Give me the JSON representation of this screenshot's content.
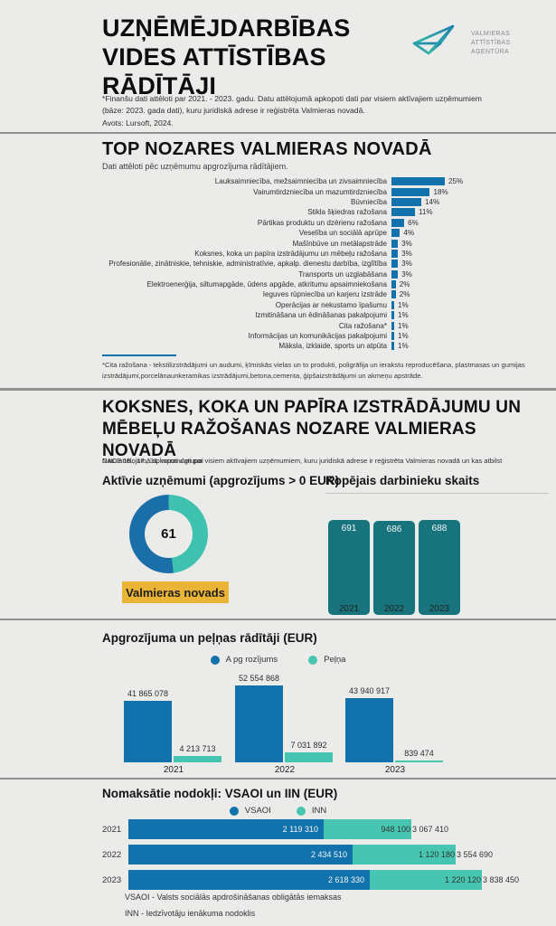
{
  "colors": {
    "blue": "#1272ab",
    "teal": "#46c5b1",
    "dark_teal": "#17747d",
    "donut_blue": "#1b6fa9",
    "donut_teal": "#3fc1b0",
    "yellow": "#eab436"
  },
  "header": {
    "title_lines": [
      "UZŅĒMĒJDARBĪBAS",
      "VIDES ATTĪSTĪBAS",
      "RĀDĪTĀJI"
    ],
    "note_lines": [
      "*Finanšu dati attēloti par 2021. - 2023. gadu. Datu attēlojumā apkopoti dati par visiem aktīvajiem uzņēmumiem",
      "(bāze: 2023. gada dati), kuru juridiskā adrese ir reģistrēta Valmieras novadā.",
      "Avots: Lursoft, 2024."
    ],
    "logo_lines": [
      "VALMIERAS",
      "ATTĪSTĪBAS",
      "AĢENTŪRA"
    ]
  },
  "top_sectors": {
    "title": "TOP NOZARES VALMIERAS NOVADĀ",
    "subtitle": "Dati attēloti pēc uzņēmumu apgrozījuma rādītājiem.",
    "footnote_lines": [
      "*Cita ražošana - tekstilizstrādājumi un audumi, ķīmiskās vielas un to produkti, poligrāfija un ierakstu reproducēšana, plastmasas un gumijas",
      "izstrādājumi,porcelānaunkeramikas izstrādājumi,betona,cementa, ģipšaizstrādājumi un akmeņu apstrāde."
    ]
  },
  "industry_section": {
    "title_lines": [
      "KOKSNES, KOKA UN PAPĪRA IZSTRĀDĀJUMU UN",
      "MĒBEĻU RAŽOŠANAS NOZARE VALMIERAS",
      "NOVADĀ"
    ],
    "subtitle_layer_back": "Datu attēlojumā apkopoti dati par visiem aktīvajiem uzņēmumiem, kuru juridiskā adrese ir reģistrēta Valmieras novadā un kas atbilst",
    "subtitle_layer_front": "NACE 16., 17., 31. nozaru grupai",
    "active_companies_heading": "Aktīvie uzņēmumi (apgrozījums > 0 EUR)",
    "badge": "Valmieras novads",
    "employees_heading": "Kopējais darbinieku skaits"
  },
  "turnover_section": {
    "title": "Apgrozījuma un peļņas rādītāji (EUR)",
    "legend": [
      "A pg rozījums",
      "Peļņa"
    ]
  },
  "tax_section": {
    "title": "Nomaksātie nodokļi: VSAOI un IIN (EUR)",
    "legend": [
      "VSAOI",
      "INN"
    ],
    "footnote_lines": [
      "VSAOI - Valsts sociālās apdrošināšanas obligātās iemaksas",
      "INN - Iedzīvotāju ienākuma nodoklis"
    ]
  },
  "chart_data": [
    {
      "id": "top_sectors",
      "type": "bar",
      "orientation": "horizontal",
      "title": "TOP NOZARES VALMIERAS NOVADĀ",
      "unit": "%",
      "color": "#1272ab",
      "categories": [
        "Lauksaimniecība, mežsaimniecība un zivsaimniecība",
        "Vairumtirdzniecība un mazumtirdzniecība",
        "Būvniecība",
        "Stikla šķiedras ražošana",
        "Pārtikas produktu un dzērienu ražošana",
        "Veselība un sociālā aprūpe",
        "Mašīnbūve un metālapstrāde",
        "Koksnes, koka un papīra izstrādājumu un mēbeļu ražošana",
        "Profesionālie, zinātniskie, tehniskie, administratīvie, apkalp. dienestu darbība, izglītība",
        "Transports un uzglabāšana",
        "Elektroenerģija, siltumapgāde, ūdens apgāde, atkritumu apsaimniekošana",
        "Ieguves rūpniecība un karjeru izstrāde",
        "Operācijas ar nekustamo īpašumu",
        "Izmitināšana un ēdināšanas pakalpojumi",
        "Cita ražošana*",
        "Informācijas un komunikācijas pakalpojumi",
        "Māksla, izklaide, sports un atpūta"
      ],
      "values": [
        25,
        18,
        14,
        11,
        6,
        4,
        3,
        3,
        3,
        3,
        2,
        2,
        1,
        1,
        1,
        1,
        1
      ],
      "value_labels": [
        "25%",
        "18%",
        "14%",
        "11%",
        "6%",
        "4%",
        "3%",
        "3%",
        "3%",
        "3%",
        "2%",
        "2%",
        "1%",
        "1%",
        "1%",
        "1%",
        "1%"
      ]
    },
    {
      "id": "active_companies",
      "type": "pie",
      "center_value": "61",
      "segments": [
        {
          "name": "teal-segment",
          "fraction": 0.48,
          "color": "#3fc1b0"
        },
        {
          "name": "blue-segment",
          "fraction": 0.52,
          "color": "#1b6fa9"
        }
      ]
    },
    {
      "id": "employees",
      "type": "bar",
      "title": "Kopējais darbinieku skaits",
      "categories": [
        "2021",
        "2022",
        "2023"
      ],
      "values": [
        691,
        686,
        688
      ],
      "value_labels": [
        "691",
        "686",
        "688"
      ],
      "color": "#17747d",
      "ylim": [
        0,
        691
      ]
    },
    {
      "id": "turnover_profit",
      "type": "bar",
      "title": "Apgrozījuma un peļņas rādītāji (EUR)",
      "categories": [
        "2021",
        "2022",
        "2023"
      ],
      "series": [
        {
          "name": "A pg rozījums",
          "color": "#1272ab",
          "values": [
            41865078,
            52554868,
            43940917
          ],
          "labels": [
            "41 865 078",
            "52 554 868",
            "43 940 917"
          ]
        },
        {
          "name": "Peļņa",
          "color": "#46c5b1",
          "values": [
            4213713,
            7031892,
            839474
          ],
          "labels": [
            "4 213 713",
            "7 031 892",
            "839 474"
          ]
        }
      ],
      "legend_position": "top-center"
    },
    {
      "id": "taxes",
      "type": "bar",
      "orientation": "horizontal",
      "stacked": true,
      "title": "Nomaksātie nodokļi: VSAOI un IIN (EUR)",
      "categories": [
        "2021",
        "2022",
        "2023"
      ],
      "series": [
        {
          "name": "VSAOI",
          "color": "#1272ab",
          "values": [
            2119310,
            2434510,
            2618330
          ],
          "labels": [
            "2 119 310",
            "2 434 510",
            "2 618 330"
          ]
        },
        {
          "name": "INN",
          "color": "#46c5b1",
          "values": [
            948100,
            1120180,
            1220120
          ],
          "labels": [
            "948 100",
            "1 120 180",
            "1 220 120"
          ]
        }
      ],
      "totals": [
        3067410,
        3554690,
        3838450
      ],
      "total_labels": [
        "3 067 410",
        "3 554 690",
        "3 838 450"
      ]
    }
  ]
}
